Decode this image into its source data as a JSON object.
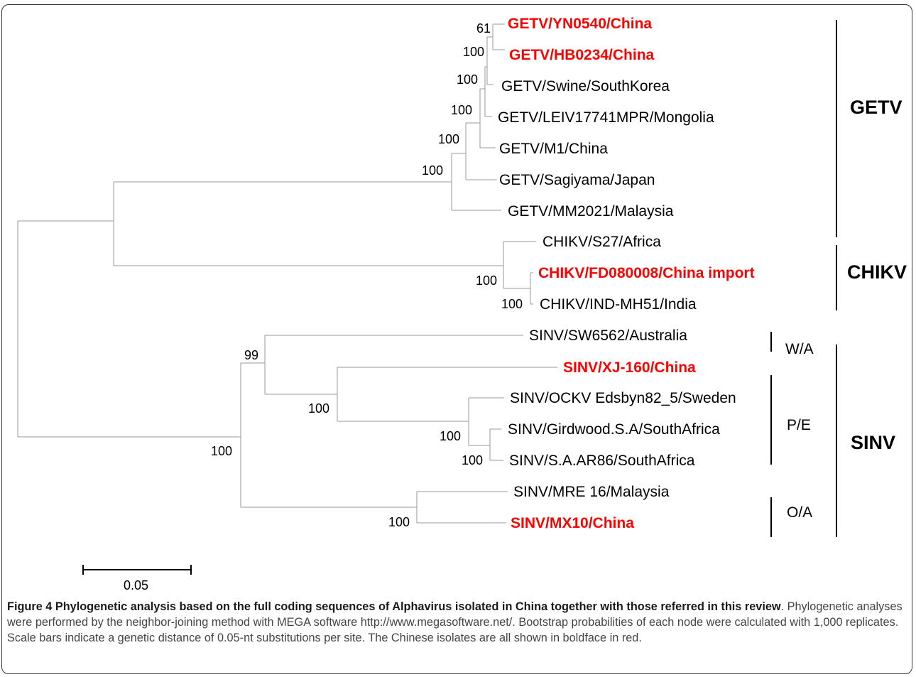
{
  "leaves": [
    {
      "label": "GETV/YN0540/China",
      "highlight": true
    },
    {
      "label": "GETV/HB0234/China",
      "highlight": true
    },
    {
      "label": "GETV/Swine/SouthKorea",
      "highlight": false
    },
    {
      "label": "GETV/LEIV17741MPR/Mongolia",
      "highlight": false
    },
    {
      "label": "GETV/M1/China",
      "highlight": false
    },
    {
      "label": "GETV/Sagiyama/Japan",
      "highlight": false
    },
    {
      "label": "GETV/MM2021/Malaysia",
      "highlight": false
    },
    {
      "label": "CHIKV/S27/Africa",
      "highlight": false
    },
    {
      "label": "CHIKV/FD080008/China import",
      "highlight": true
    },
    {
      "label": "CHIKV/IND-MH51/India",
      "highlight": false
    },
    {
      "label": "SINV/SW6562/Australia",
      "highlight": false
    },
    {
      "label": "SINV/XJ-160/China",
      "highlight": true
    },
    {
      "label": "SINV/OCKV Edsbyn82_5/Sweden",
      "highlight": false
    },
    {
      "label": "SINV/Girdwood.S.A/SouthAfrica",
      "highlight": false
    },
    {
      "label": "SINV/S.A.AR86/SouthAfrica",
      "highlight": false
    },
    {
      "label": "SINV/MRE 16/Malaysia",
      "highlight": false
    },
    {
      "label": "SINV/MX10/China",
      "highlight": true
    }
  ],
  "bootstrap": [
    "61",
    "100",
    "100",
    "100",
    "100",
    "100",
    "100",
    "100",
    "99",
    "100",
    "100",
    "100",
    "100",
    "100"
  ],
  "clades": {
    "getv": "GETV",
    "chikv": "CHIKV",
    "sinv": "SINV",
    "wa": "W/A",
    "pe": "P/E",
    "oa": "O/A"
  },
  "scale_bar": {
    "label": "0.05",
    "value": 0.05
  },
  "colors": {
    "highlight": "#ff0000",
    "branch": "#9a9a9a",
    "text": "#000000"
  },
  "caption": {
    "bold": "Figure 4 Phylogenetic analysis based on the full coding sequences of Alphavirus isolated in China together with those referred in this review",
    "text": ". Phylogenetic analyses were performed by the neighbor-joining method with MEGA software http://www.megasoftware.net/. Bootstrap probabilities of each node were calculated with 1,000 replicates. Scale bars indicate a genetic distance of 0.05-nt substitutions per site. The Chinese isolates are all shown in boldface in red."
  }
}
